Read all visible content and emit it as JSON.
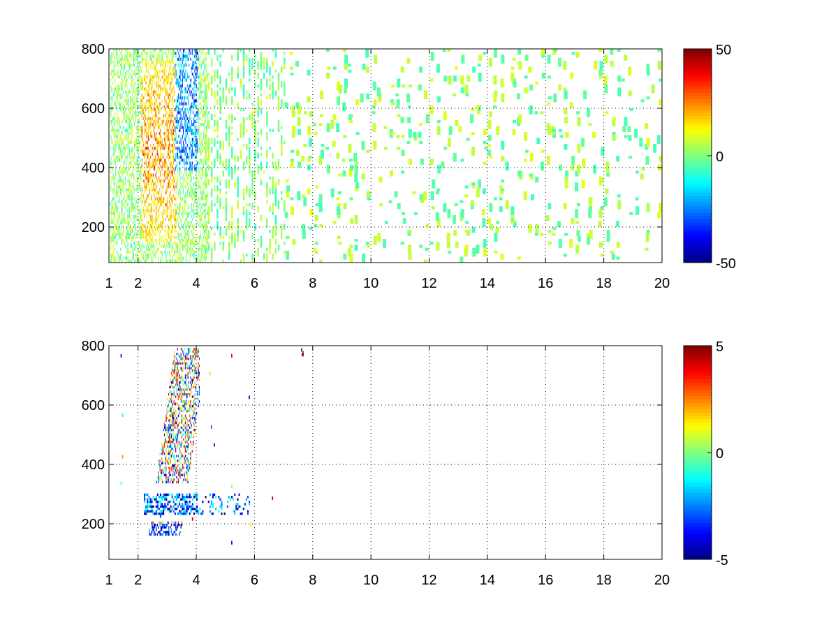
{
  "chart_data": [
    {
      "type": "heatmap",
      "title": "",
      "xlabel": "",
      "ylabel": "",
      "xlim": [
        1,
        20
      ],
      "ylim": [
        80,
        800
      ],
      "x_ticks": [
        1,
        2,
        4,
        6,
        8,
        10,
        12,
        14,
        16,
        18,
        20
      ],
      "x_tick_labels": [
        "1",
        "2",
        "4",
        "6",
        "8",
        "10",
        "12",
        "14",
        "16",
        "18",
        "20"
      ],
      "y_ticks": [
        200,
        400,
        600,
        800
      ],
      "y_tick_labels": [
        "200",
        "400",
        "600",
        "800"
      ],
      "grid": true,
      "colormap": "jet",
      "clim": [
        -50,
        50
      ],
      "colorbar_ticks": [
        -50,
        0,
        50
      ],
      "colorbar_tick_labels": [
        "-50",
        "0",
        "50"
      ],
      "description_values": {
        "positive_region": {
          "x": [
            2.2,
            3.2
          ],
          "y": [
            150,
            750
          ],
          "value": 25
        },
        "negative_region": {
          "x": [
            3.2,
            4.0
          ],
          "y": [
            400,
            800
          ],
          "value": -20
        },
        "sparse_range_beyond_x": 6,
        "sparse_value_range": [
          -10,
          10
        ]
      }
    },
    {
      "type": "heatmap",
      "title": "",
      "xlabel": "",
      "ylabel": "",
      "xlim": [
        1,
        20
      ],
      "ylim": [
        80,
        800
      ],
      "x_ticks": [
        1,
        2,
        4,
        6,
        8,
        10,
        12,
        14,
        16,
        18,
        20
      ],
      "x_tick_labels": [
        "1",
        "2",
        "4",
        "6",
        "8",
        "10",
        "12",
        "14",
        "16",
        "18",
        "20"
      ],
      "y_ticks": [
        200,
        400,
        600,
        800
      ],
      "y_tick_labels": [
        "200",
        "400",
        "600",
        "800"
      ],
      "grid": true,
      "colormap": "jet",
      "clim": [
        -5,
        5
      ],
      "colorbar_ticks": [
        -5,
        0,
        5
      ],
      "colorbar_tick_labels": [
        "-5",
        "0",
        "5"
      ],
      "description_values": {
        "main_cluster": {
          "x": [
            2.3,
            4.0
          ],
          "y": [
            160,
            780
          ]
        },
        "band_near_250": {
          "x": [
            2.2,
            5.8
          ],
          "y": [
            230,
            290
          ],
          "value": -3
        }
      }
    }
  ]
}
